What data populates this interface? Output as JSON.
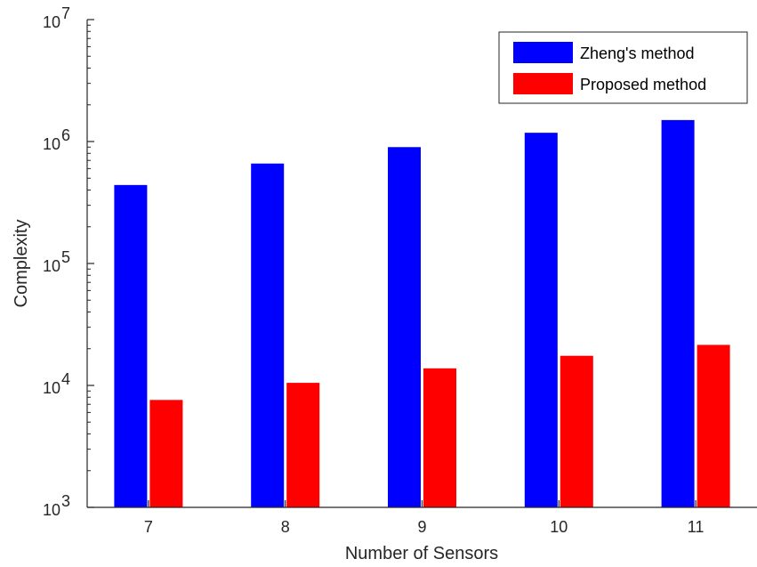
{
  "chart_data": {
    "type": "bar",
    "categories": [
      "7",
      "8",
      "9",
      "10",
      "11"
    ],
    "series": [
      {
        "name": "Zheng's method",
        "color": "#0000ff",
        "values": [
          440000,
          660000,
          900000,
          1180000,
          1500000
        ]
      },
      {
        "name": "Proposed method",
        "color": "#ff0000",
        "values": [
          7600,
          10500,
          13800,
          17500,
          21500
        ]
      }
    ],
    "xlabel": "Number of Sensors",
    "ylabel": "Complexity",
    "y_scale": "log",
    "ylim": [
      1000,
      10000000
    ],
    "y_ticks": [
      {
        "base": "10",
        "exp": "3"
      },
      {
        "base": "10",
        "exp": "4"
      },
      {
        "base": "10",
        "exp": "5"
      },
      {
        "base": "10",
        "exp": "6"
      },
      {
        "base": "10",
        "exp": "7"
      }
    ],
    "grid": false,
    "legend_position": "top-right"
  }
}
